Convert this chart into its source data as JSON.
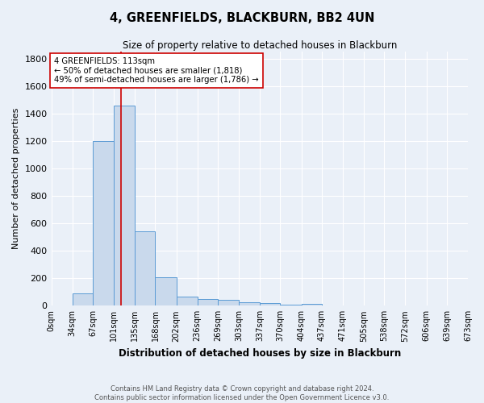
{
  "title": "4, GREENFIELDS, BLACKBURN, BB2 4UN",
  "subtitle": "Size of property relative to detached houses in Blackburn",
  "xlabel": "Distribution of detached houses by size in Blackburn",
  "ylabel": "Number of detached properties",
  "footnote1": "Contains HM Land Registry data © Crown copyright and database right 2024.",
  "footnote2": "Contains public sector information licensed under the Open Government Licence v3.0.",
  "bin_edges": [
    0,
    34,
    67,
    101,
    135,
    168,
    202,
    236,
    269,
    303,
    337,
    370,
    404,
    437,
    471,
    505,
    538,
    572,
    606,
    639,
    673
  ],
  "bin_labels": [
    "0sqm",
    "34sqm",
    "67sqm",
    "101sqm",
    "135sqm",
    "168sqm",
    "202sqm",
    "236sqm",
    "269sqm",
    "303sqm",
    "337sqm",
    "370sqm",
    "404sqm",
    "437sqm",
    "471sqm",
    "505sqm",
    "538sqm",
    "572sqm",
    "606sqm",
    "639sqm",
    "673sqm"
  ],
  "counts": [
    0,
    90,
    1200,
    1460,
    540,
    205,
    65,
    50,
    40,
    27,
    22,
    5,
    12,
    0,
    0,
    0,
    0,
    0,
    0,
    0
  ],
  "bar_facecolor": "#c9d9ec",
  "bar_edgecolor": "#5b9bd5",
  "background_color": "#eaf0f8",
  "grid_color": "#ffffff",
  "property_line_x": 113,
  "property_line_color": "#cc0000",
  "annotation_text": "4 GREENFIELDS: 113sqm\n← 50% of detached houses are smaller (1,818)\n49% of semi-detached houses are larger (1,786) →",
  "annotation_box_edgecolor": "#cc0000",
  "annotation_box_facecolor": "#ffffff",
  "ylim": [
    0,
    1850
  ],
  "yticks": [
    0,
    200,
    400,
    600,
    800,
    1000,
    1200,
    1400,
    1600,
    1800
  ]
}
